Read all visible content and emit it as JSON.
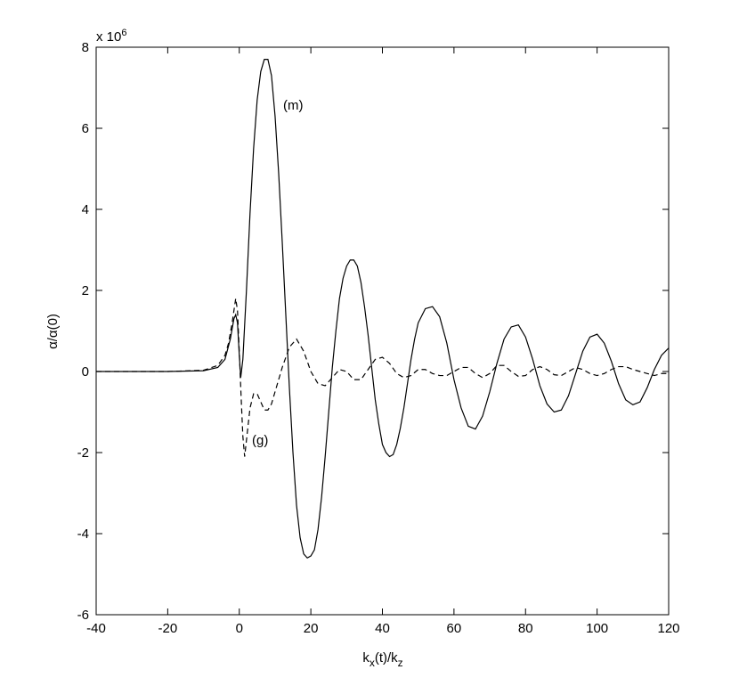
{
  "chart_data": {
    "type": "line",
    "xlabel": [
      "k",
      "x",
      "(t)/k",
      "z"
    ],
    "ylabel": "α/α(0)",
    "y_multiplier": "x 10",
    "y_multiplier_exp": "6",
    "annotations": [
      "(m)",
      "(g)"
    ],
    "xlim": [
      -40,
      120
    ],
    "xticks": [
      -40,
      -20,
      0,
      20,
      40,
      60,
      80,
      100,
      120
    ],
    "ylim": [
      -6,
      8
    ],
    "yticks": [
      -6,
      -4,
      -2,
      0,
      2,
      4,
      6,
      8
    ],
    "grid": false,
    "series": [
      {
        "color": "#000000",
        "dash": "solid",
        "x": [
          -40,
          -20,
          -10,
          -6,
          -4,
          -2.5,
          -1.5,
          -1,
          -0.5,
          0,
          0.4,
          1,
          2,
          3,
          4,
          5,
          6,
          7,
          8,
          9,
          10,
          11,
          12,
          13,
          14,
          15,
          16,
          17,
          18,
          19,
          20,
          21,
          22,
          23,
          24,
          25,
          26,
          27,
          28,
          29,
          30,
          31,
          32,
          33,
          34,
          35,
          36,
          37,
          38,
          39,
          40,
          41,
          42,
          43,
          44,
          45,
          46,
          47,
          48,
          49,
          50,
          52,
          54,
          56,
          58,
          60,
          62,
          64,
          66,
          68,
          70,
          72,
          74,
          76,
          78,
          80,
          82,
          84,
          86,
          88,
          90,
          92,
          94,
          96,
          98,
          100,
          102,
          104,
          106,
          108,
          110,
          112,
          114,
          116,
          118,
          120
        ],
        "values": [
          0,
          0,
          0.02,
          0.1,
          0.3,
          0.8,
          1.3,
          1.4,
          1.2,
          0.4,
          -0.15,
          0.3,
          2.0,
          3.9,
          5.5,
          6.7,
          7.4,
          7.7,
          7.7,
          7.3,
          6.3,
          4.9,
          3.2,
          1.4,
          -0.4,
          -2.0,
          -3.3,
          -4.1,
          -4.5,
          -4.6,
          -4.55,
          -4.4,
          -3.9,
          -3.1,
          -2.1,
          -1.0,
          0.1,
          1.0,
          1.8,
          2.3,
          2.6,
          2.75,
          2.75,
          2.6,
          2.2,
          1.6,
          0.9,
          0.1,
          -0.7,
          -1.3,
          -1.8,
          -2.0,
          -2.1,
          -2.05,
          -1.8,
          -1.4,
          -0.9,
          -0.3,
          0.3,
          0.8,
          1.2,
          1.55,
          1.6,
          1.35,
          0.7,
          -0.2,
          -0.9,
          -1.35,
          -1.42,
          -1.1,
          -0.5,
          0.2,
          0.8,
          1.1,
          1.15,
          0.85,
          0.3,
          -0.35,
          -0.8,
          -1.0,
          -0.95,
          -0.6,
          -0.05,
          0.5,
          0.85,
          0.92,
          0.7,
          0.25,
          -0.3,
          -0.7,
          -0.82,
          -0.75,
          -0.4,
          0.05,
          0.4,
          0.58
        ]
      },
      {
        "color": "#000000",
        "dash": "dashed",
        "x": [
          -40,
          -20,
          -10,
          -6,
          -4,
          -3,
          -2,
          -1.5,
          -1,
          -0.5,
          0,
          0.5,
          1,
          1.5,
          2,
          3,
          4,
          5,
          6,
          7,
          8,
          9,
          10,
          12,
          14,
          16,
          18,
          20,
          22,
          24,
          26,
          28,
          30,
          32,
          34,
          36,
          38,
          40,
          42,
          44,
          46,
          48,
          50,
          52,
          54,
          56,
          58,
          60,
          62,
          64,
          66,
          68,
          70,
          72,
          74,
          76,
          78,
          80,
          82,
          84,
          86,
          88,
          90,
          92,
          94,
          96,
          98,
          100,
          102,
          104,
          106,
          108,
          110,
          112,
          114,
          116,
          118,
          120
        ],
        "values": [
          0,
          0,
          0.03,
          0.15,
          0.4,
          0.7,
          1.2,
          1.5,
          1.8,
          1.5,
          0.5,
          -0.6,
          -1.6,
          -2.1,
          -1.7,
          -0.9,
          -0.55,
          -0.55,
          -0.75,
          -0.95,
          -0.95,
          -0.8,
          -0.5,
          0.1,
          0.6,
          0.8,
          0.5,
          0,
          -0.3,
          -0.35,
          -0.15,
          0.05,
          0,
          -0.2,
          -0.2,
          0.05,
          0.3,
          0.35,
          0.2,
          -0.05,
          -0.15,
          -0.1,
          0.05,
          0.05,
          -0.05,
          -0.1,
          -0.1,
          0,
          0.1,
          0.1,
          -0.05,
          -0.15,
          -0.05,
          0.15,
          0.15,
          0,
          -0.12,
          -0.1,
          0.05,
          0.12,
          0.05,
          -0.08,
          -0.1,
          0,
          0.1,
          0.05,
          -0.05,
          -0.1,
          -0.05,
          0.05,
          0.12,
          0.12,
          0.05,
          0,
          -0.05,
          -0.1,
          -0.05,
          -0.05
        ]
      }
    ]
  }
}
